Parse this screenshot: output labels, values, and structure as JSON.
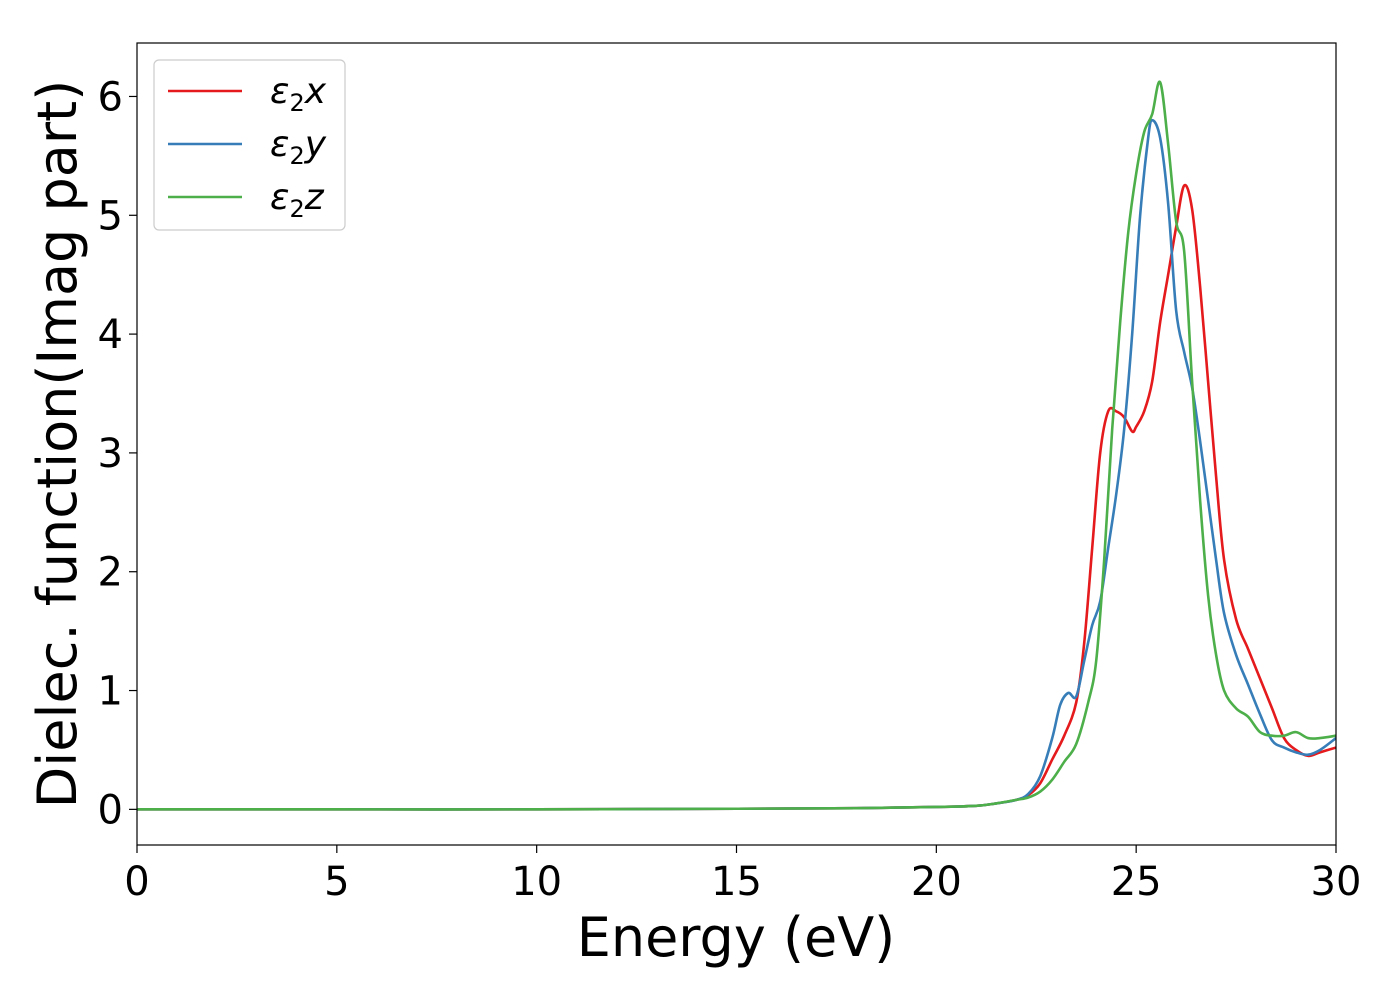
{
  "chart_data": {
    "type": "line",
    "title": "",
    "xlabel": "Energy (eV)",
    "ylabel": "Dielec. function(Imag part)",
    "xlim": [
      0,
      30
    ],
    "ylim": [
      -0.3,
      6.45
    ],
    "xticks": [
      "0",
      "5",
      "10",
      "15",
      "20",
      "25",
      "30"
    ],
    "yticks": [
      "0",
      "1",
      "2",
      "3",
      "4",
      "5",
      "6"
    ],
    "grid": false,
    "legend_position": "top-left",
    "series": [
      {
        "name": "ε2x",
        "legend": {
          "symbol": "ε",
          "subscript": "2",
          "suffix": "x"
        },
        "color": "#e41a1c",
        "x": [
          0,
          5,
          10,
          15,
          18,
          20,
          21,
          21.5,
          22,
          22.3,
          22.6,
          22.9,
          23.2,
          23.5,
          23.7,
          23.9,
          24.1,
          24.3,
          24.5,
          24.7,
          24.9,
          25.0,
          25.2,
          25.4,
          25.6,
          25.8,
          26.0,
          26.2,
          26.4,
          26.6,
          26.8,
          27.0,
          27.2,
          27.5,
          27.8,
          28.1,
          28.4,
          28.7,
          29.0,
          29.3,
          29.6,
          30.0
        ],
        "y": [
          0,
          0,
          0,
          0.005,
          0.01,
          0.02,
          0.03,
          0.05,
          0.08,
          0.12,
          0.22,
          0.42,
          0.62,
          0.9,
          1.4,
          2.2,
          3.0,
          3.35,
          3.35,
          3.3,
          3.18,
          3.22,
          3.35,
          3.6,
          4.1,
          4.5,
          4.9,
          5.25,
          5.05,
          4.4,
          3.6,
          2.8,
          2.1,
          1.6,
          1.35,
          1.1,
          0.85,
          0.6,
          0.5,
          0.45,
          0.48,
          0.52
        ]
      },
      {
        "name": "ε2y",
        "legend": {
          "symbol": "ε",
          "subscript": "2",
          "suffix": "y"
        },
        "color": "#377eb8",
        "x": [
          0,
          5,
          10,
          15,
          18,
          20,
          21,
          21.5,
          22,
          22.3,
          22.6,
          22.9,
          23.1,
          23.3,
          23.5,
          23.7,
          23.9,
          24.1,
          24.3,
          24.5,
          24.7,
          24.9,
          25.1,
          25.3,
          25.4,
          25.6,
          25.8,
          26.0,
          26.2,
          26.4,
          26.6,
          26.8,
          27.0,
          27.2,
          27.5,
          27.8,
          28.1,
          28.4,
          28.7,
          29.0,
          29.3,
          29.6,
          30.0
        ],
        "y": [
          0,
          0,
          0,
          0.005,
          0.01,
          0.02,
          0.03,
          0.05,
          0.08,
          0.13,
          0.28,
          0.6,
          0.88,
          0.98,
          0.95,
          1.25,
          1.55,
          1.75,
          2.2,
          2.65,
          3.2,
          4.0,
          5.0,
          5.65,
          5.8,
          5.65,
          5.1,
          4.2,
          3.85,
          3.55,
          3.1,
          2.6,
          2.1,
          1.65,
          1.3,
          1.05,
          0.8,
          0.58,
          0.52,
          0.48,
          0.46,
          0.5,
          0.6
        ]
      },
      {
        "name": "ε2z",
        "legend": {
          "symbol": "ε",
          "subscript": "2",
          "suffix": "z"
        },
        "color": "#4daf4a",
        "x": [
          0,
          5,
          10,
          15,
          18,
          20,
          21,
          21.5,
          22,
          22.3,
          22.6,
          22.9,
          23.2,
          23.5,
          23.8,
          24.0,
          24.2,
          24.4,
          24.6,
          24.8,
          25.0,
          25.2,
          25.4,
          25.6,
          25.8,
          26.0,
          26.2,
          26.4,
          26.6,
          26.8,
          27.0,
          27.2,
          27.5,
          27.8,
          28.1,
          28.4,
          28.7,
          29.0,
          29.3,
          29.6,
          30.0
        ],
        "y": [
          0,
          0,
          0,
          0.005,
          0.01,
          0.02,
          0.03,
          0.05,
          0.08,
          0.1,
          0.15,
          0.25,
          0.4,
          0.55,
          0.9,
          1.25,
          2.1,
          3.2,
          4.1,
          4.85,
          5.35,
          5.7,
          5.85,
          6.12,
          5.6,
          4.95,
          4.7,
          3.6,
          2.6,
          1.8,
          1.3,
          1.0,
          0.85,
          0.78,
          0.65,
          0.62,
          0.62,
          0.65,
          0.6,
          0.6,
          0.62
        ]
      }
    ]
  }
}
